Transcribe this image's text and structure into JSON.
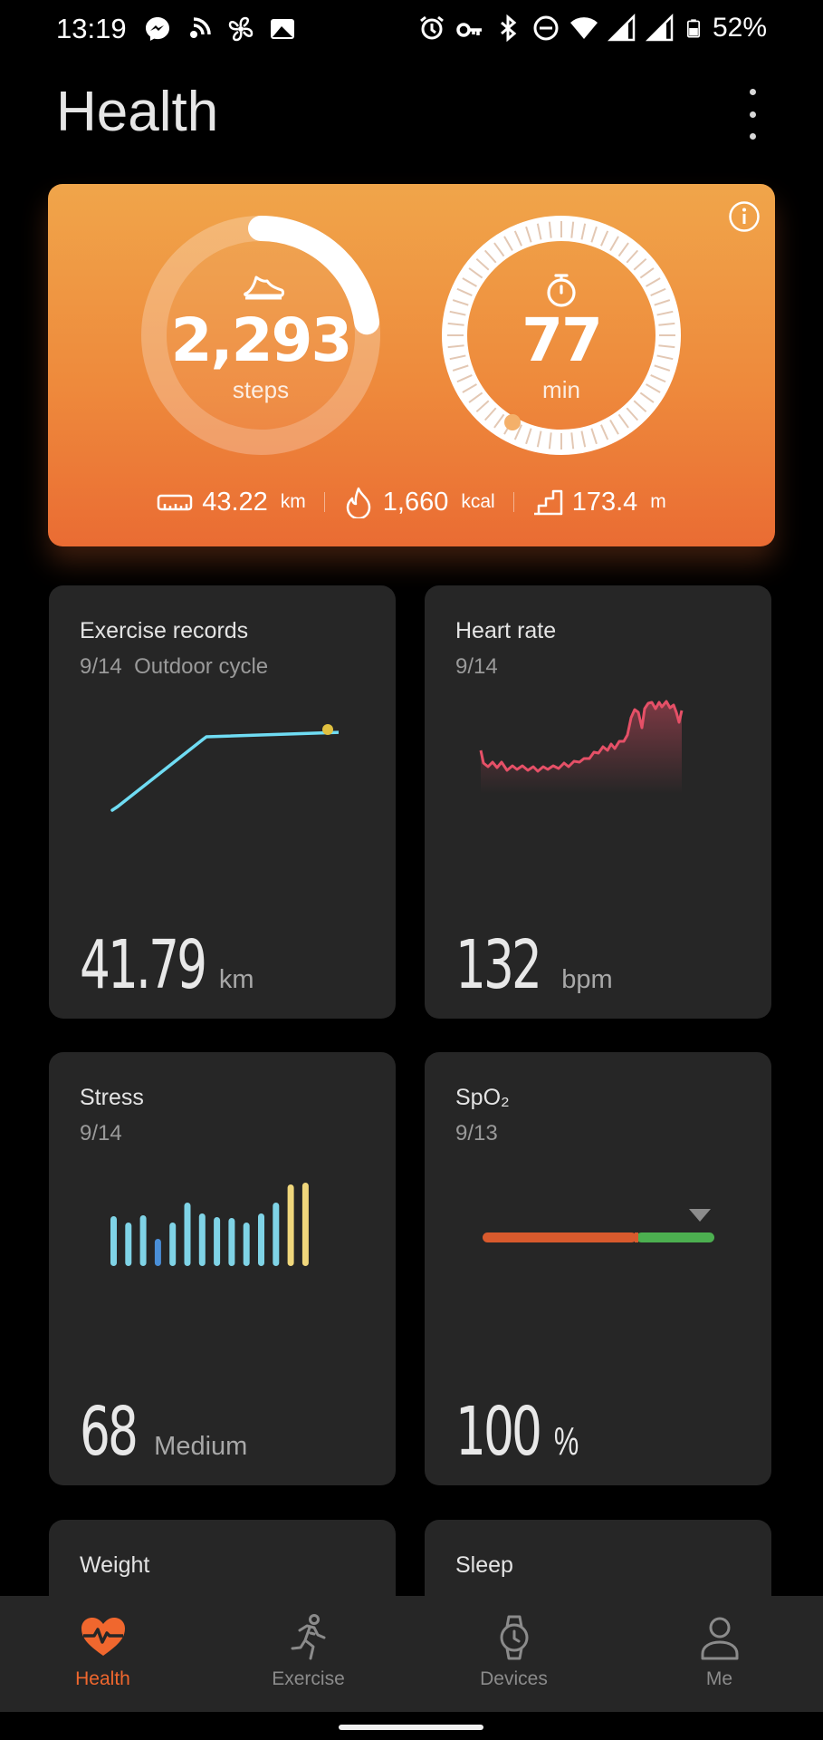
{
  "status_bar": {
    "time": "13:19",
    "battery": "52%",
    "icons_left": [
      "messenger-icon",
      "nfc-icon",
      "fan-icon",
      "photo-icon"
    ],
    "icons_right": [
      "alarm-icon",
      "key-icon",
      "bluetooth-icon",
      "dnd-icon",
      "wifi-icon",
      "signal-icon",
      "signal-icon",
      "battery-icon"
    ]
  },
  "header": {
    "title": "Health"
  },
  "activity": {
    "steps": {
      "value": "2,293",
      "unit": "steps",
      "progress": 0.23
    },
    "active_minutes": {
      "value": "77",
      "unit": "min"
    },
    "distance": {
      "value": "43.22",
      "unit": "km"
    },
    "calories": {
      "value": "1,660",
      "unit": "kcal"
    },
    "climb": {
      "value": "173.4",
      "unit": "m"
    }
  },
  "cards": {
    "exercise": {
      "title": "Exercise records",
      "date": "9/14",
      "activity": "Outdoor cycle",
      "value": "41.79",
      "unit": "km"
    },
    "heart_rate": {
      "title": "Heart rate",
      "date": "9/14",
      "value": "132",
      "unit": "bpm"
    },
    "stress": {
      "title": "Stress",
      "date": "9/14",
      "value": "68",
      "unit": "Medium"
    },
    "spo2": {
      "title": "SpO₂",
      "date": "9/13",
      "value": "100",
      "unit": "%"
    },
    "weight": {
      "title": "Weight"
    },
    "sleep": {
      "title": "Sleep"
    }
  },
  "nav": {
    "items": [
      {
        "label": "Health",
        "icon": "heart-pulse-icon"
      },
      {
        "label": "Exercise",
        "icon": "runner-icon"
      },
      {
        "label": "Devices",
        "icon": "watch-icon"
      },
      {
        "label": "Me",
        "icon": "person-icon"
      }
    ]
  },
  "colors": {
    "accent": "#f0672e",
    "route": "#6fdcf3",
    "heart_line": "#e55067",
    "stress_bar": "#7fd3e6",
    "stress_low": "#4a8fd8",
    "stress_high": "#f0d77c",
    "spo2_red": "#d95a2d",
    "spo2_green": "#4caf50"
  }
}
